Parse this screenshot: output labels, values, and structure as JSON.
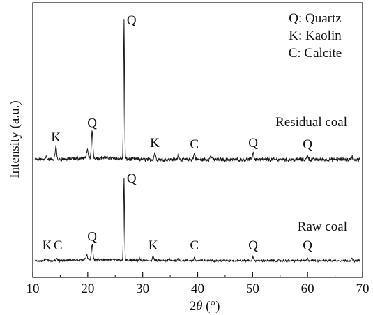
{
  "chart_data": {
    "type": "line",
    "xlabel_prefix": "2",
    "xlabel_theta": "θ",
    "xlabel_suffix": " (°)",
    "ylabel": "Intensity (a.u.)",
    "xlim": [
      10,
      70
    ],
    "x_ticks": [
      "10",
      "20",
      "30",
      "40",
      "50",
      "60",
      "70"
    ],
    "grid": false,
    "y_ticks_shown": false,
    "legend": {
      "placement": "top-right",
      "entries": [
        "Q: Quartz",
        "K: Kaolin",
        "C: Calcite"
      ]
    },
    "series": [
      {
        "name": "Residual coal",
        "relative_intensity": true,
        "peaks": [
          {
            "x": 12.4,
            "y": 0.02
          },
          {
            "x": 14.2,
            "y": 0.09
          },
          {
            "x": 19.9,
            "y": 0.06
          },
          {
            "x": 20.8,
            "y": 0.19
          },
          {
            "x": 26.6,
            "y": 1.0
          },
          {
            "x": 32.2,
            "y": 0.05
          },
          {
            "x": 36.5,
            "y": 0.04
          },
          {
            "x": 39.4,
            "y": 0.04
          },
          {
            "x": 42.4,
            "y": 0.03
          },
          {
            "x": 50.1,
            "y": 0.05
          },
          {
            "x": 60.0,
            "y": 0.03
          },
          {
            "x": 68.1,
            "y": 0.02
          }
        ],
        "peak_labels": [
          {
            "text": "K",
            "x": 14.2
          },
          {
            "text": "Q",
            "x": 20.8
          },
          {
            "text": "Q",
            "x": 26.6
          },
          {
            "text": "K",
            "x": 32.2
          },
          {
            "text": "C",
            "x": 39.4
          },
          {
            "text": "Q",
            "x": 50.1
          },
          {
            "text": "Q",
            "x": 60.0
          }
        ]
      },
      {
        "name": "Raw coal",
        "relative_intensity": true,
        "peaks": [
          {
            "x": 12.4,
            "y": 0.02
          },
          {
            "x": 14.4,
            "y": 0.02
          },
          {
            "x": 19.8,
            "y": 0.06
          },
          {
            "x": 20.8,
            "y": 0.19
          },
          {
            "x": 26.6,
            "y": 1.0
          },
          {
            "x": 29.4,
            "y": 0.02
          },
          {
            "x": 31.9,
            "y": 0.05
          },
          {
            "x": 34.8,
            "y": 0.02
          },
          {
            "x": 36.5,
            "y": 0.03
          },
          {
            "x": 39.4,
            "y": 0.03
          },
          {
            "x": 42.4,
            "y": 0.02
          },
          {
            "x": 50.1,
            "y": 0.04
          },
          {
            "x": 60.0,
            "y": 0.02
          },
          {
            "x": 68.1,
            "y": 0.02
          }
        ],
        "peak_labels": [
          {
            "text": "K",
            "x": 12.6
          },
          {
            "text": "C",
            "x": 14.6
          },
          {
            "text": "Q",
            "x": 20.8
          },
          {
            "text": "Q",
            "x": 26.6
          },
          {
            "text": "K",
            "x": 31.9
          },
          {
            "text": "C",
            "x": 39.4
          },
          {
            "text": "Q",
            "x": 50.1
          },
          {
            "text": "Q",
            "x": 60.0
          }
        ]
      }
    ]
  }
}
